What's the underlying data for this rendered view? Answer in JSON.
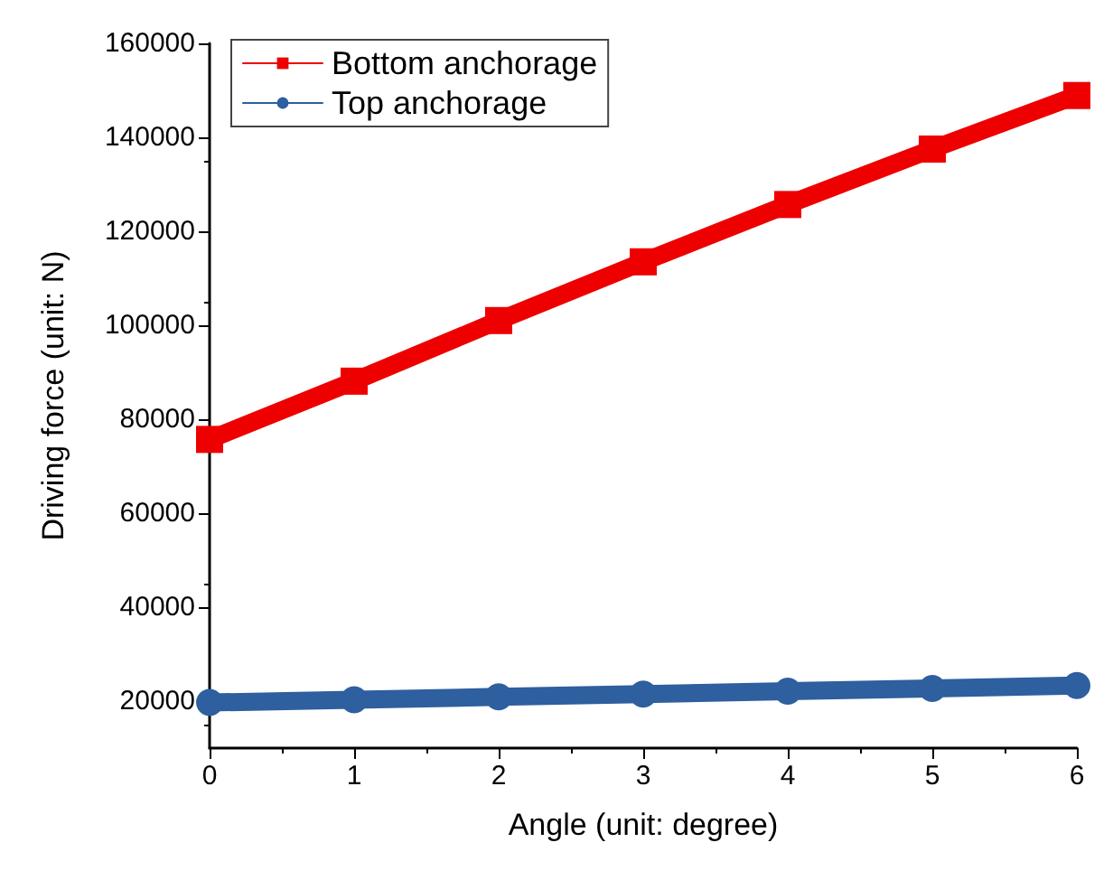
{
  "chart_data": {
    "type": "line",
    "xlabel": "Angle (unit: degree)",
    "ylabel": "Driving force (unit: N)",
    "x": [
      0,
      1,
      2,
      3,
      4,
      5,
      6
    ],
    "series": [
      {
        "name": "Bottom anchorage",
        "color": "#ee0000",
        "marker": "square",
        "values": [
          75700,
          88100,
          101000,
          113500,
          125700,
          137500,
          148900
        ]
      },
      {
        "name": "Top anchorage",
        "color": "#2e5f9e",
        "marker": "circle",
        "values": [
          19700,
          20300,
          20900,
          21500,
          22100,
          22700,
          23300
        ]
      }
    ],
    "xlim": [
      0,
      6
    ],
    "xticks": [
      0,
      1,
      2,
      3,
      4,
      5,
      6
    ],
    "ylim": [
      10000,
      160000
    ],
    "yticks": [
      20000,
      40000,
      60000,
      80000,
      100000,
      120000,
      140000,
      160000
    ],
    "grid": false,
    "legend": "top left",
    "line_style": "solid"
  }
}
